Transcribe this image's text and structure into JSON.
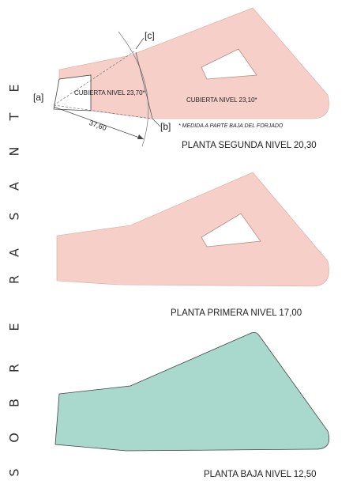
{
  "vertical_title": [
    "S",
    "O",
    "B",
    "R",
    "E",
    "R",
    "A",
    "S",
    "A",
    "N",
    "T",
    "E"
  ],
  "plans": [
    {
      "id": "segunda",
      "title": "PLANTA SEGUNDA NIVEL  20,30",
      "fill": "#f5cfc8"
    },
    {
      "id": "primera",
      "title": "PLANTA PRIMERA  NIVEL  17,00",
      "fill": "#f5cfc8"
    },
    {
      "id": "baja",
      "title": "PLANTA BAJA NIVEL   12,50",
      "fill": "#a8d9cc"
    }
  ],
  "annotations": {
    "point_a": "[a]",
    "point_b": "[b]",
    "point_c": "[c]",
    "roof_left": "CUBIERTA NIVEL 23,70*",
    "roof_right": "CUBIERTA NIVEL 23,10*",
    "dimension": "37,60",
    "note": "* MEDIDA A PARTE BAJA DEL FORJADO"
  },
  "colors": {
    "pink": "#f5cfc8",
    "teal": "#a8d9cc",
    "outline": "#444444"
  }
}
